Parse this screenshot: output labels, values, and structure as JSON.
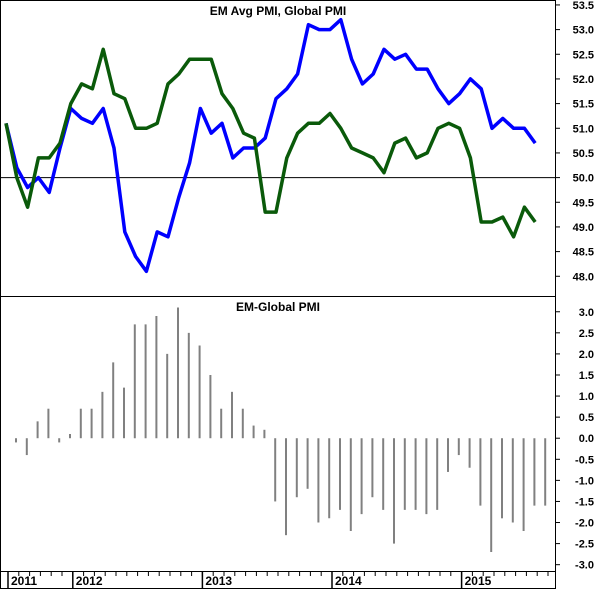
{
  "chart_data": [
    {
      "type": "line",
      "title": "EM Avg PMI, Global PMI",
      "ylim": [
        47.6,
        53.6
      ],
      "yticks": [
        "48.0",
        "48.5",
        "49.0",
        "49.5",
        "50.0",
        "50.5",
        "51.0",
        "51.5",
        "52.0",
        "52.5",
        "53.0",
        "53.5"
      ],
      "reference_line": 50.0,
      "grid": false,
      "series": [
        {
          "color": "#0000ff",
          "values": [
            51.1,
            50.2,
            49.8,
            50.0,
            49.7,
            50.6,
            51.4,
            51.2,
            51.1,
            51.4,
            50.6,
            48.9,
            48.4,
            48.1,
            48.9,
            48.8,
            49.6,
            50.3,
            51.4,
            50.9,
            51.1,
            50.4,
            50.6,
            50.6,
            50.8,
            51.6,
            51.8,
            52.1,
            53.1,
            53.0,
            53.0,
            53.2,
            52.4,
            51.9,
            52.1,
            52.6,
            52.4,
            52.5,
            52.2,
            52.2,
            51.8,
            51.5,
            51.7,
            52.0,
            51.8,
            51.0,
            51.2,
            51.0,
            51.0,
            50.7
          ]
        },
        {
          "color": "#0a5a0a",
          "values": [
            51.1,
            50.0,
            49.4,
            50.4,
            50.4,
            50.7,
            51.5,
            51.9,
            51.8,
            52.6,
            51.7,
            51.6,
            51.0,
            51.0,
            51.1,
            51.9,
            52.1,
            52.4,
            52.4,
            52.4,
            51.7,
            51.4,
            50.9,
            50.8,
            49.3,
            49.3,
            50.4,
            50.9,
            51.1,
            51.1,
            51.3,
            51.0,
            50.6,
            50.5,
            50.4,
            50.1,
            50.7,
            50.8,
            50.4,
            50.5,
            51.0,
            51.1,
            51.0,
            50.4,
            49.1,
            49.1,
            49.2,
            48.8,
            49.4,
            49.1
          ]
        }
      ]
    },
    {
      "type": "bar",
      "title": "EM-Global PMI",
      "ylim": [
        -3.15,
        3.35
      ],
      "yticks": [
        "-3.0",
        "-2.5",
        "-2.0",
        "-1.5",
        "-1.0",
        "-0.5",
        "0.0",
        "0.5",
        "1.0",
        "1.5",
        "2.0",
        "2.5",
        "3.0"
      ],
      "color": "#808080",
      "values": [
        -0.1,
        -0.4,
        0.4,
        0.7,
        -0.1,
        0.1,
        0.7,
        0.7,
        1.1,
        1.8,
        1.2,
        2.7,
        2.7,
        2.9,
        2.0,
        3.1,
        2.5,
        2.2,
        1.5,
        0.7,
        1.1,
        0.7,
        0.3,
        0.2,
        -1.5,
        -2.3,
        -1.4,
        -1.2,
        -2.0,
        -1.9,
        -1.7,
        -2.2,
        -1.8,
        -1.4,
        -1.7,
        -2.5,
        -1.7,
        -1.7,
        -1.8,
        -1.7,
        -0.8,
        -0.4,
        -0.7,
        -1.6,
        -2.7,
        -1.9,
        -2.0,
        -2.2,
        -1.6,
        -1.6
      ]
    }
  ],
  "x_axis": {
    "years": [
      "2011",
      "2012",
      "2013",
      "2014",
      "2015"
    ],
    "year_month_index": [
      0,
      6,
      18,
      30,
      42
    ]
  }
}
